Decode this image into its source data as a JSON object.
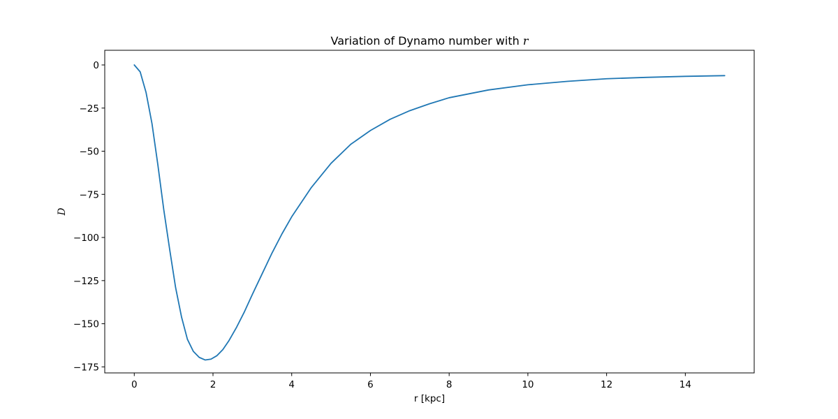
{
  "chart_data": {
    "type": "line",
    "title": "Variation of Dynamo number with",
    "title_var": "r",
    "xlabel": "r [kpc]",
    "ylabel": "D",
    "xlim": [
      -0.75,
      15.75
    ],
    "ylim": [
      -178.5,
      8.5
    ],
    "xticks": [
      0,
      2,
      4,
      6,
      8,
      10,
      12,
      14
    ],
    "yticks": [
      0,
      -25,
      -50,
      -75,
      -100,
      -125,
      -150,
      -175
    ],
    "line_color": "#1f77b4",
    "grid": false,
    "legend": "none",
    "series": [
      {
        "x": [
          0,
          0.15,
          0.3,
          0.45,
          0.6,
          0.75,
          0.9,
          1.05,
          1.2,
          1.35,
          1.5,
          1.65,
          1.8,
          1.95,
          2.1,
          2.25,
          2.4,
          2.6,
          2.8,
          3.0,
          3.25,
          3.5,
          3.75,
          4.0,
          4.5,
          5.0,
          5.5,
          6.0,
          6.5,
          7.0,
          7.5,
          8.0,
          9.0,
          10.0,
          11.0,
          12.0,
          13.0,
          14.0,
          15.0
        ],
        "y": [
          0,
          -4,
          -16,
          -34,
          -58,
          -84,
          -107,
          -129,
          -146,
          -159,
          -166,
          -169.5,
          -171,
          -170.5,
          -168.5,
          -165,
          -160,
          -152,
          -143,
          -133,
          -121,
          -109,
          -98,
          -88,
          -71,
          -57,
          -46,
          -38,
          -31.5,
          -26.5,
          -22.5,
          -19,
          -14.5,
          -11.5,
          -9.5,
          -8,
          -7.2,
          -6.6,
          -6.2
        ]
      }
    ]
  }
}
